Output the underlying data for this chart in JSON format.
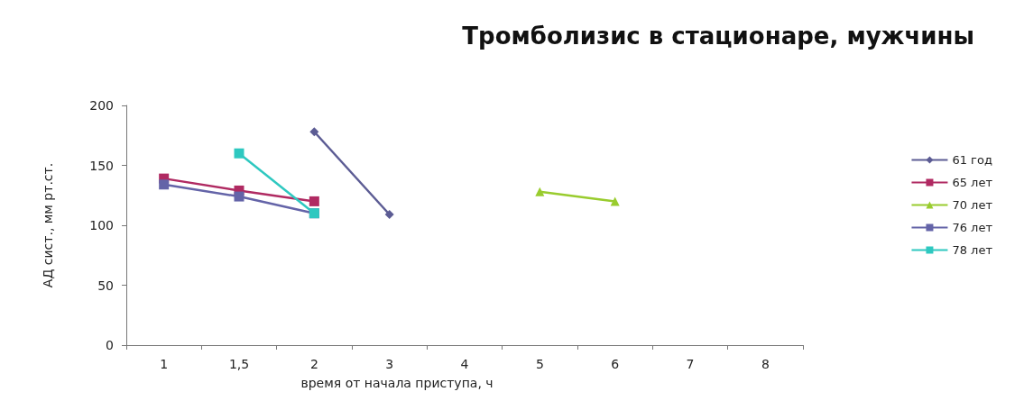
{
  "chart_data": {
    "type": "line",
    "title": "Тромболизис в стационаре, мужчины",
    "xlabel": "время от начала приступа, ч",
    "ylabel": "АД сист., мм рт.ст.",
    "categories": [
      "1",
      "1,5",
      "2",
      "3",
      "4",
      "5",
      "6",
      "7",
      "8"
    ],
    "series": [
      {
        "name": "61 год",
        "color": "#5c5c94",
        "marker": "diamond",
        "values": [
          null,
          null,
          178,
          109,
          null,
          null,
          null,
          null,
          null
        ]
      },
      {
        "name": "65 лет",
        "color": "#b02a62",
        "marker": "square",
        "values": [
          139,
          129,
          120,
          null,
          null,
          null,
          null,
          null,
          null
        ]
      },
      {
        "name": "70 лет",
        "color": "#99cc2e",
        "marker": "triangle",
        "values": [
          null,
          null,
          null,
          null,
          null,
          128,
          120,
          null,
          null
        ]
      },
      {
        "name": "76 лет",
        "color": "#6464a8",
        "marker": "square",
        "values": [
          134,
          124,
          110,
          null,
          null,
          null,
          null,
          null,
          null
        ]
      },
      {
        "name": "78 лет",
        "color": "#2ec8c0",
        "marker": "square",
        "values": [
          null,
          160,
          110,
          null,
          null,
          null,
          null,
          null,
          null
        ]
      }
    ],
    "ylim": [
      0,
      200
    ],
    "yticks": [
      0,
      50,
      100,
      150,
      200
    ],
    "grid": false,
    "legend": "right"
  }
}
